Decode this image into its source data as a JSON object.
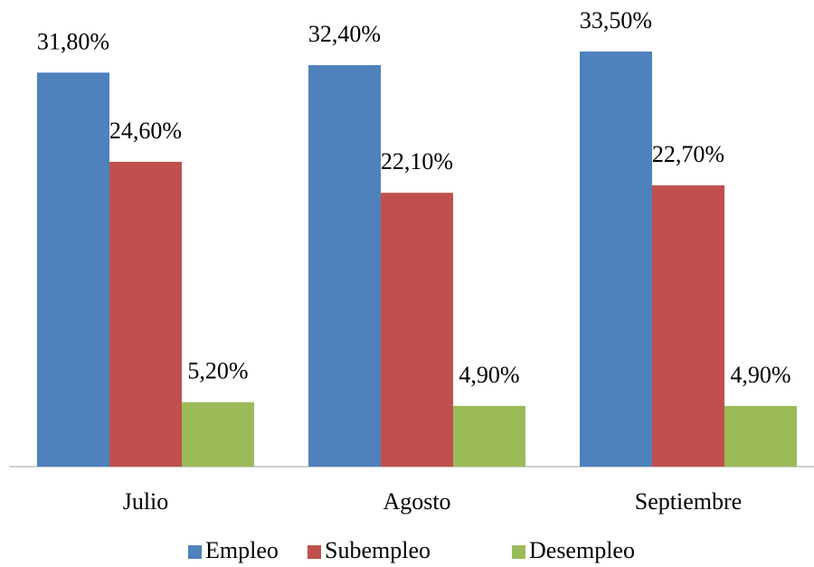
{
  "chart_data": {
    "type": "bar",
    "categories": [
      "Julio",
      "Agosto",
      "Septiembre"
    ],
    "series": [
      {
        "name": "Empleo",
        "color": "#4f81bd",
        "values": [
          31.8,
          32.4,
          33.5
        ],
        "value_labels": [
          "31,80%",
          "32,40%",
          "33,50%"
        ]
      },
      {
        "name": "Subempleo",
        "color": "#c0504d",
        "values": [
          24.6,
          22.1,
          22.7
        ],
        "value_labels": [
          "24,60%",
          "22,10%",
          "22,70%"
        ]
      },
      {
        "name": "Desempleo",
        "color": "#9bbb59",
        "values": [
          5.2,
          4.9,
          4.9
        ],
        "value_labels": [
          "5,20%",
          "4,90%",
          "4,90%"
        ]
      }
    ],
    "legend": "bottom"
  }
}
